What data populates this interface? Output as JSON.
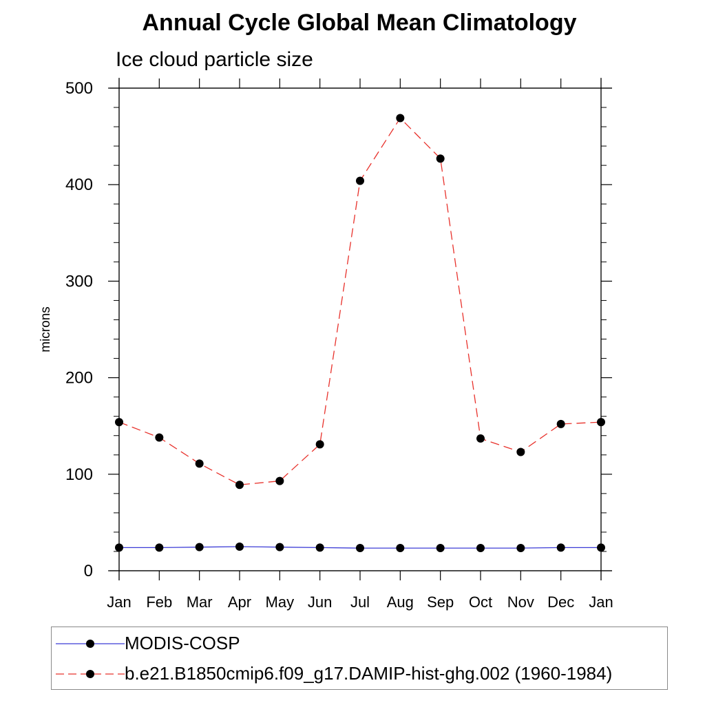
{
  "chart_data": {
    "type": "line",
    "title": "Annual Cycle Global Mean Climatology",
    "subtitle": "Ice cloud particle size",
    "xlabel": "",
    "ylabel": "microns",
    "categories": [
      "Jan",
      "Feb",
      "Mar",
      "Apr",
      "May",
      "Jun",
      "Jul",
      "Aug",
      "Sep",
      "Oct",
      "Nov",
      "Dec",
      "Jan"
    ],
    "ylim": [
      0,
      500
    ],
    "yticks": [
      0,
      100,
      200,
      300,
      400,
      500
    ],
    "grid": false,
    "legend_position": "bottom",
    "series": [
      {
        "name": "MODIS-COSP",
        "color": "#3b3bd6",
        "line_style": "solid",
        "marker": "filled-circle",
        "values": [
          24,
          24,
          24.5,
          25,
          24.5,
          24,
          23.5,
          23.5,
          23.5,
          23.5,
          23.5,
          24,
          24
        ]
      },
      {
        "name": "b.e21.B1850cmip6.f09_g17.DAMIP-hist-ghg.002 (1960-1984)",
        "color": "#e8302a",
        "line_style": "dashed",
        "marker": "filled-circle",
        "values": [
          154,
          138,
          111,
          89,
          93,
          131,
          404,
          469,
          427,
          137,
          123,
          152,
          154
        ]
      }
    ]
  }
}
